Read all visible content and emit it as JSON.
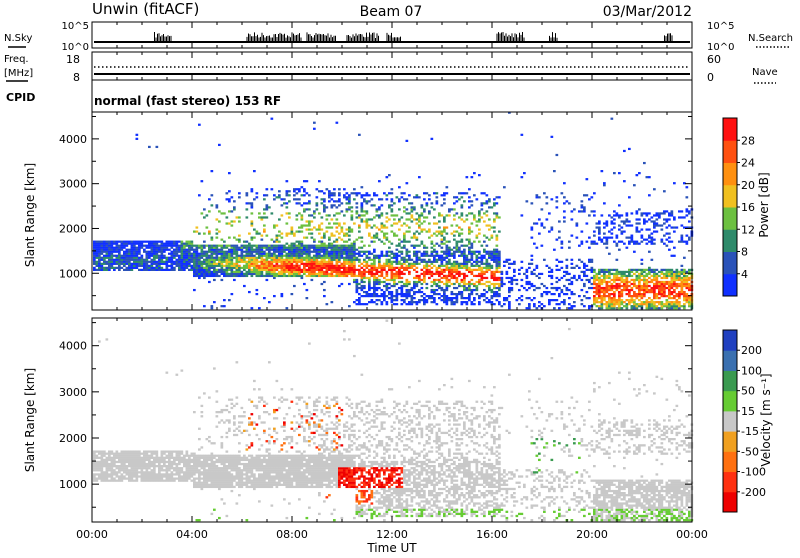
{
  "header": {
    "station": "Unwin (fitACF)",
    "beam": "Beam 07",
    "date": "03/Mar/2012"
  },
  "top_panels": {
    "nsky_label": "N.Sky",
    "nsky_ticks": [
      "10^5",
      "10^0"
    ],
    "nsearch_label": "N.Search",
    "nsearch_ticks": [
      "10^5",
      "10^0"
    ],
    "freq_label_1": "Freq.",
    "freq_label_2": "[MHz]",
    "freq_ticks": [
      "18",
      "8"
    ],
    "nave_label": "Nave",
    "nave_ticks": [
      "60",
      "0"
    ],
    "cpid_label": "CPID",
    "cpid_text": "normal (fast stereo) 153 RF"
  },
  "chart_data": [
    {
      "type": "heatmap",
      "name": "power",
      "ylabel": "Slant Range [km]",
      "ylim": [
        180,
        4600
      ],
      "yticks": [
        "1000",
        "2000",
        "3000",
        "4000"
      ],
      "colorbar_label": "Power [dB]",
      "colorbar_ticks": [
        "4",
        "8",
        "12",
        "16",
        "20",
        "24",
        "28"
      ],
      "colorbar_colors": [
        "#1030ff",
        "#2a52b8",
        "#2e8a6a",
        "#6cc040",
        "#f0c020",
        "#ff9010",
        "#ff5010",
        "#ff1010"
      ]
    },
    {
      "type": "heatmap",
      "name": "velocity",
      "ylabel": "Slant Range [km]",
      "ylim": [
        180,
        4600
      ],
      "yticks": [
        "1000",
        "2000",
        "3000",
        "4000"
      ],
      "colorbar_label": "Velocity [m s⁻¹]",
      "colorbar_ticks": [
        "200",
        "100",
        "50",
        "15",
        "-15",
        "-50",
        "-100",
        "-200"
      ],
      "colorbar_colors": [
        "#2040c0",
        "#3a70b0",
        "#3a9a50",
        "#66cc33",
        "#c8c8c8",
        "#f0a020",
        "#ff7010",
        "#ff3010",
        "#ee0000"
      ]
    }
  ],
  "xaxis": {
    "label": "Time UT",
    "ticks": [
      "00:00",
      "04:00",
      "08:00",
      "12:00",
      "16:00",
      "20:00",
      "00:00"
    ]
  },
  "colors": {
    "ground_scatter": "#c8c8c8"
  }
}
